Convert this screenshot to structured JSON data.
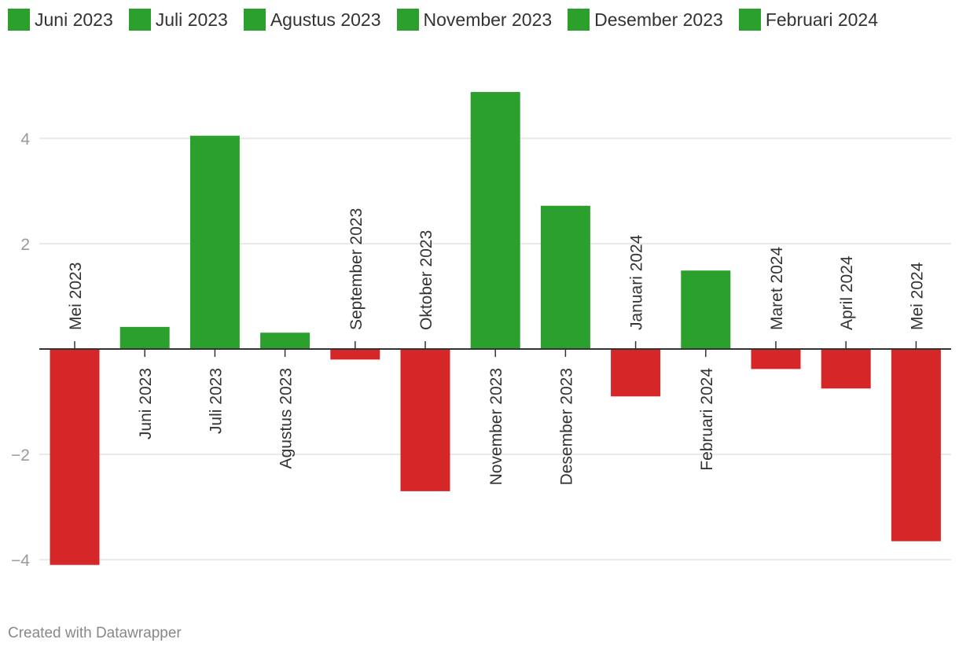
{
  "legend": {
    "items": [
      {
        "label": "Juni 2023",
        "color": "#2ca02c"
      },
      {
        "label": "Juli 2023",
        "color": "#2ca02c"
      },
      {
        "label": "Agustus 2023",
        "color": "#2ca02c"
      },
      {
        "label": "November 2023",
        "color": "#2ca02c"
      },
      {
        "label": "Desember 2023",
        "color": "#2ca02c"
      },
      {
        "label": "Februari 2024",
        "color": "#2ca02c"
      }
    ]
  },
  "chart_data": {
    "type": "bar",
    "categories": [
      "Mei 2023",
      "Juni 2023",
      "Juli 2023",
      "Agustus 2023",
      "September 2023",
      "Oktober 2023",
      "November 2023",
      "Desember 2023",
      "Januari 2024",
      "Februari 2024",
      "Maret 2024",
      "April 2024",
      "Mei 2024"
    ],
    "values": [
      -4.1,
      0.42,
      4.05,
      0.31,
      -0.2,
      -2.7,
      4.88,
      2.72,
      -0.9,
      1.49,
      -0.38,
      -0.75,
      -3.65
    ],
    "title": "",
    "xlabel": "",
    "ylabel": "",
    "ylim": [
      -4.6,
      5.3
    ],
    "yticks": [
      4,
      2,
      -2,
      -4
    ],
    "ytick_labels": [
      "4",
      "2",
      "−2",
      "−4"
    ],
    "grid": true,
    "legend_position": "top-left",
    "colors": {
      "positive": "#2ca02c",
      "negative": "#d62728"
    }
  },
  "footer": {
    "credit": "Created with Datawrapper"
  }
}
